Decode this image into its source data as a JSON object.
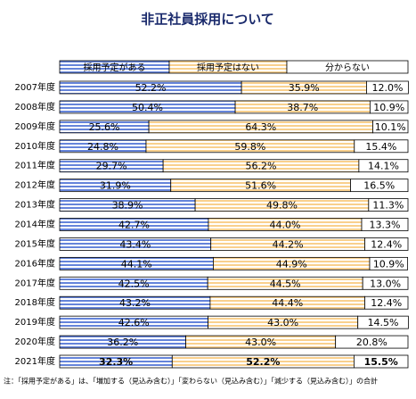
{
  "chart_data": {
    "type": "stacked-bar-100",
    "title": "非正社員採用について",
    "note": "注：「採用予定がある」は、「増加する（見込み含む）」「変わらない（見込み含む）」「減少する（見込み含む）」の合計",
    "categories": [
      "2007年度",
      "2008年度",
      "2009年度",
      "2010年度",
      "2011年度",
      "2012年度",
      "2013年度",
      "2014年度",
      "2015年度",
      "2016年度",
      "2017年度",
      "2018年度",
      "2019年度",
      "2020年度",
      "2021年度"
    ],
    "xlim": [
      0,
      100
    ],
    "series": [
      {
        "name": "採用予定がある",
        "color": "#4a6fd4",
        "values": [
          52.2,
          50.4,
          25.6,
          24.8,
          29.7,
          31.9,
          38.9,
          42.7,
          43.4,
          44.1,
          42.5,
          43.2,
          42.6,
          36.2,
          32.3
        ],
        "value_labels": [
          "52.2%",
          "50.4%",
          "25.6%",
          "24.8%",
          "29.7%",
          "31.9%",
          "38.9%",
          "42.7%",
          "43.4%",
          "44.1%",
          "42.5%",
          "43.2%",
          "42.6%",
          "36.2%",
          "32.3%"
        ]
      },
      {
        "name": "採用予定はない",
        "color": "#f5b041",
        "values": [
          35.9,
          38.7,
          64.3,
          59.8,
          56.2,
          51.6,
          49.8,
          44.0,
          44.2,
          44.9,
          44.5,
          44.4,
          43.0,
          43.0,
          52.2
        ],
        "value_labels": [
          "35.9%",
          "38.7%",
          "64.3%",
          "59.8%",
          "56.2%",
          "51.6%",
          "49.8%",
          "44.0%",
          "44.2%",
          "44.9%",
          "44.5%",
          "44.4%",
          "43.0%",
          "43.0%",
          "52.2%"
        ]
      },
      {
        "name": "分からない",
        "color": "#ffffff",
        "values": [
          12.0,
          10.9,
          10.1,
          15.4,
          14.1,
          16.5,
          11.3,
          13.3,
          12.4,
          10.9,
          13.0,
          12.4,
          14.5,
          20.8,
          15.5
        ],
        "value_labels": [
          "12.0%",
          "10.9%",
          "10.1%",
          "15.4%",
          "14.1%",
          "16.5%",
          "11.3%",
          "13.3%",
          "12.4%",
          "10.9%",
          "13.0%",
          "12.4%",
          "14.5%",
          "20.8%",
          "15.5%"
        ]
      }
    ]
  }
}
